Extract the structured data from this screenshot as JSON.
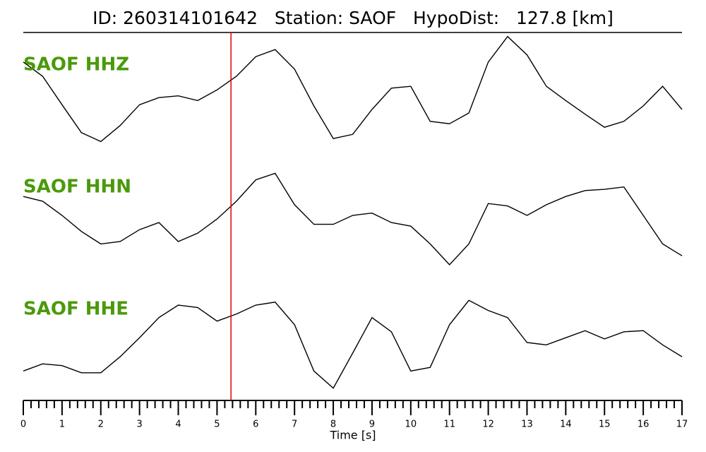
{
  "chart_data": {
    "type": "seismogram",
    "title": "ID: 260314101642   Station: SAOF   HypoDist:   127.8 [km]",
    "xlabel": "Time [s]",
    "x": [
      0,
      0.5,
      1,
      1.5,
      2,
      2.5,
      3,
      3.5,
      4,
      4.5,
      5,
      5.5,
      6,
      6.5,
      7,
      7.5,
      8,
      8.5,
      9,
      9.5,
      10,
      10.5,
      11,
      11.5,
      12,
      12.5,
      13,
      13.5,
      14,
      14.5,
      15,
      15.5,
      16,
      16.5,
      17
    ],
    "xlim": [
      0,
      17
    ],
    "xticks": [
      0,
      1,
      2,
      3,
      4,
      5,
      6,
      7,
      8,
      9,
      10,
      11,
      12,
      13,
      14,
      15,
      16,
      17
    ],
    "xminorticks": [
      0.2,
      0.4,
      0.6,
      0.8,
      1.2,
      1.4,
      1.6,
      1.8,
      2.2,
      2.4,
      2.6,
      2.8,
      3.2,
      3.4,
      3.6,
      3.8,
      4.2,
      4.4,
      4.6,
      4.8,
      5.2,
      5.4,
      5.6,
      5.8,
      6.2,
      6.4,
      6.6,
      6.8,
      7.2,
      7.4,
      7.6,
      7.8,
      8.2,
      8.4,
      8.6,
      8.8,
      9.2,
      9.4,
      9.6,
      9.8,
      10.2,
      10.4,
      10.6,
      10.8,
      11.2,
      11.4,
      11.6,
      11.8,
      12.2,
      12.4,
      12.6,
      12.8,
      13.2,
      13.4,
      13.6,
      13.8,
      14.2,
      14.4,
      14.6,
      14.8,
      15.2,
      15.4,
      15.6,
      15.8,
      16.2,
      16.4,
      16.6,
      16.8
    ],
    "ylim": [
      -1,
      1
    ],
    "pick_time": 5.36,
    "pick_color": "#e00000",
    "label_color": "#4a9a0a",
    "series": [
      {
        "name": "SAOF HHZ",
        "color": "#000000",
        "values": [
          0.55,
          0.31,
          -0.17,
          -0.64,
          -0.79,
          -0.52,
          -0.17,
          -0.05,
          -0.02,
          -0.1,
          0.08,
          0.31,
          0.64,
          0.76,
          0.43,
          -0.19,
          -0.74,
          -0.67,
          -0.25,
          0.11,
          0.14,
          -0.45,
          -0.49,
          -0.31,
          0.55,
          0.98,
          0.67,
          0.14,
          -0.1,
          -0.33,
          -0.55,
          -0.45,
          -0.19,
          0.14,
          -0.25
        ]
      },
      {
        "name": "SAOF HHN",
        "color": "#000000",
        "values": [
          0.26,
          0.18,
          -0.06,
          -0.33,
          -0.54,
          -0.5,
          -0.3,
          -0.18,
          -0.5,
          -0.36,
          -0.12,
          0.18,
          0.54,
          0.65,
          0.12,
          -0.21,
          -0.21,
          -0.06,
          -0.02,
          -0.18,
          -0.24,
          -0.54,
          -0.89,
          -0.54,
          0.14,
          0.1,
          -0.06,
          0.12,
          0.26,
          0.36,
          0.38,
          0.42,
          -0.06,
          -0.54,
          -0.74
        ]
      },
      {
        "name": "SAOF HHE",
        "color": "#000000",
        "values": [
          -0.42,
          -0.3,
          -0.33,
          -0.45,
          -0.45,
          -0.18,
          0.14,
          0.48,
          0.69,
          0.65,
          0.42,
          0.54,
          0.69,
          0.74,
          0.36,
          -0.42,
          -0.71,
          -0.12,
          0.48,
          0.24,
          -0.42,
          -0.36,
          0.36,
          0.77,
          0.6,
          0.48,
          0.06,
          0.02,
          0.14,
          0.26,
          0.12,
          0.24,
          0.26,
          0.02,
          -0.18
        ]
      }
    ]
  }
}
